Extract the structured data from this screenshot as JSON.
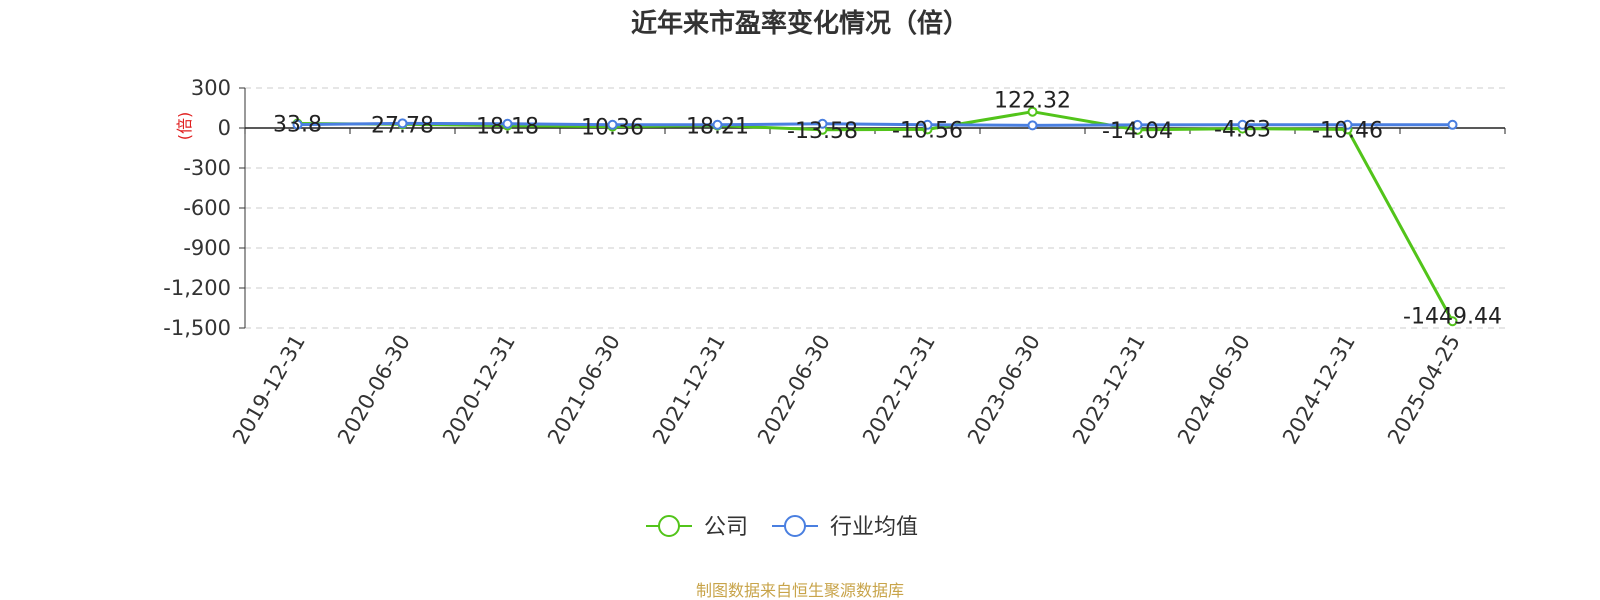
{
  "chart_data": {
    "type": "line",
    "title": "近年来市盈率变化情况（倍）",
    "ylabel": "(倍)",
    "ylim": [
      -1500,
      300
    ],
    "yticks": [
      300,
      0,
      -300,
      -600,
      -900,
      -1200,
      -1500
    ],
    "ytick_labels": [
      "300",
      "0",
      "-300",
      "-600",
      "-900",
      "-1,200",
      "-1,500"
    ],
    "categories": [
      "2019-12-31",
      "2020-06-30",
      "2020-12-31",
      "2021-06-30",
      "2021-12-31",
      "2022-06-30",
      "2022-12-31",
      "2023-06-30",
      "2023-12-31",
      "2024-06-30",
      "2024-12-31",
      "2025-04-25"
    ],
    "grid": true,
    "legend_position": "bottom",
    "series": [
      {
        "name": "公司",
        "color": "#52c41a",
        "values": [
          33.8,
          27.78,
          18.18,
          10.36,
          18.21,
          -13.58,
          -10.56,
          122.32,
          -14.04,
          -4.63,
          -10.46,
          -1449.44
        ],
        "labels": [
          "33.8",
          "27.78",
          "18.18",
          "10.36",
          "18.21",
          "-13.58",
          "-10.56",
          "122.32",
          "-14.04",
          "-4.63",
          "-10.46",
          "-1449.44"
        ]
      },
      {
        "name": "行业均值",
        "color": "#4a7fe0",
        "values": [
          25,
          35,
          32,
          24,
          24,
          32,
          24,
          20,
          23,
          24,
          24,
          24
        ]
      }
    ]
  },
  "source": {
    "text": "制图数据来自恒生聚源数据库",
    "color": "#c8a44a"
  },
  "colors": {
    "ylabel": "#e02020",
    "axis": "#333333",
    "grid": "#cccccc"
  }
}
